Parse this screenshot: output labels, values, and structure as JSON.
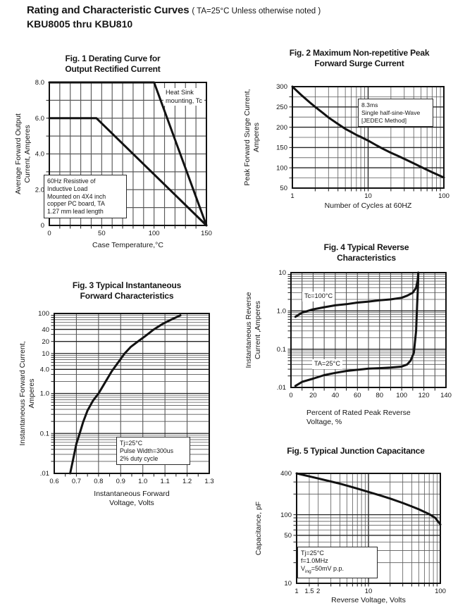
{
  "page": {
    "title": "Rating and Characteristic Curves",
    "title_note": "( TA=25°C Unless otherwise noted )",
    "subtitle": "KBU8005 thru KBU810"
  },
  "chart_data": [
    {
      "id": "fig1",
      "type": "line",
      "title_lines": [
        "Fig. 1 Derating Curve for",
        "Output Rectified Current"
      ],
      "ylabel_lines": [
        "Average Forward Output",
        "Current, Amperes"
      ],
      "xlabel_lines": [
        "Case Temperature,°C"
      ],
      "xaxis": {
        "scale": "linear",
        "min": 0,
        "max": 150,
        "gw": 1.15,
        "grid": [
          10,
          20,
          30,
          40,
          50,
          60,
          70,
          80,
          90,
          100,
          110,
          120,
          130,
          140
        ],
        "tick_labels": [
          {
            "v": 0,
            "t": "0"
          },
          {
            "v": 50,
            "t": "50"
          },
          {
            "v": 100,
            "t": "100"
          },
          {
            "v": 150,
            "t": "150"
          }
        ]
      },
      "yaxis": {
        "scale": "linear",
        "min": 0,
        "max": 8,
        "gw": 1.15,
        "grid": [
          1,
          2,
          3,
          4,
          5,
          6,
          7
        ],
        "tick_labels": [
          {
            "v": 0,
            "t": "0"
          },
          {
            "v": 2,
            "t": "2.0"
          },
          {
            "v": 4,
            "t": "4.0"
          },
          {
            "v": 6,
            "t": "6.0"
          },
          {
            "v": 8,
            "t": "8.0"
          }
        ]
      },
      "series": [
        {
          "name": "heat-sink-mounting",
          "points": [
            [
              0,
              8
            ],
            [
              100,
              8
            ],
            [
              150,
              0
            ]
          ]
        },
        {
          "name": "pc-board-mounting",
          "points": [
            [
              0,
              6
            ],
            [
              45,
              6
            ],
            [
              150,
              0
            ]
          ]
        }
      ],
      "annotations": {
        "heatsink_label": {
          "lines": [
            "Heat Sink",
            "mounting, Tc"
          ]
        },
        "load_note": {
          "lines": [
            "60Hz Resistive of",
            "Inductive Load",
            "Mounted on 4X4 inch",
            "copper PC board, TA",
            "1.27 mm lead length"
          ]
        }
      }
    },
    {
      "id": "fig2",
      "type": "line",
      "title_lines": [
        "Fig. 2 Maximum Non-repetitive Peak",
        "Forward Surge Current"
      ],
      "ylabel_lines": [
        "Peak Forward Surge Current,",
        "Amperes"
      ],
      "xlabel_lines": [
        "Number of Cycles at 60HZ"
      ],
      "xaxis": {
        "scale": "log",
        "min": 1,
        "max": 100,
        "bold": [
          10
        ],
        "grid": [
          2,
          3,
          4,
          5,
          6,
          7,
          8,
          9,
          10,
          20,
          30,
          40,
          50,
          60,
          70,
          80,
          90
        ],
        "tick_labels": [
          {
            "v": 1,
            "t": "1"
          },
          {
            "v": 10,
            "t": "10"
          },
          {
            "v": 100,
            "t": "100"
          }
        ]
      },
      "yaxis": {
        "scale": "linear",
        "min": 50,
        "max": 300,
        "bold": [
          100,
          150,
          200,
          250
        ],
        "grid": [
          75,
          100,
          125,
          150,
          175,
          200,
          225,
          250,
          275
        ],
        "tick_labels": [
          {
            "v": 50,
            "t": "50"
          },
          {
            "v": 100,
            "t": "100"
          },
          {
            "v": 150,
            "t": "150"
          },
          {
            "v": 200,
            "t": "200"
          },
          {
            "v": 250,
            "t": "250"
          },
          {
            "v": 300,
            "t": "300"
          }
        ]
      },
      "series": [
        {
          "name": "surge-current",
          "points": [
            [
              1,
              300
            ],
            [
              1.3,
              280
            ],
            [
              1.7,
              261
            ],
            [
              2,
              250
            ],
            [
              2.5,
              236
            ],
            [
              3,
              224
            ],
            [
              4,
              208
            ],
            [
              5,
              196
            ],
            [
              6,
              188
            ],
            [
              7,
              181
            ],
            [
              8,
              176
            ],
            [
              10,
              167
            ],
            [
              13,
              155
            ],
            [
              16,
              146
            ],
            [
              20,
              137
            ],
            [
              25,
              129
            ],
            [
              30,
              122
            ],
            [
              40,
              111
            ],
            [
              50,
              102
            ],
            [
              60,
              95
            ],
            [
              70,
              89
            ],
            [
              85,
              82
            ],
            [
              100,
              76
            ]
          ]
        }
      ],
      "annotations": {
        "method_note": {
          "lines": [
            "8.3ms",
            "Single half-sine-Wave",
            "[JEDEC Method]"
          ]
        }
      }
    },
    {
      "id": "fig3",
      "type": "line",
      "title_lines": [
        "Fig. 3 Typical Instantaneous",
        "Forward Characteristics"
      ],
      "ylabel_lines": [
        "Instantaneous Forward Current,",
        "Amperes"
      ],
      "xlabel_lines": [
        "Instantaneous Forward",
        "Voltage, Volts"
      ],
      "xaxis": {
        "scale": "linear",
        "min": 0.6,
        "max": 1.3,
        "gw": 1.1,
        "grid": [
          0.7,
          0.8,
          0.9,
          1.0,
          1.1,
          1.2
        ],
        "ticks": [
          0.65,
          0.7,
          0.75,
          0.8,
          0.85,
          0.9,
          0.95,
          1.0,
          1.05,
          1.1,
          1.15,
          1.2,
          1.25
        ],
        "tick_labels": [
          {
            "v": 0.6,
            "t": "0.6"
          },
          {
            "v": 0.7,
            "t": "0.7"
          },
          {
            "v": 0.8,
            "t": "0.8"
          },
          {
            "v": 0.9,
            "t": "0.9"
          },
          {
            "v": 1.0,
            "t": "1.0"
          },
          {
            "v": 1.1,
            "t": "1.1"
          },
          {
            "v": 1.2,
            "t": "1.2"
          },
          {
            "v": 1.3,
            "t": "1.3"
          }
        ]
      },
      "yaxis": {
        "scale": "log",
        "min": 0.01,
        "max": 100,
        "bold": [
          0.1,
          1,
          4,
          10,
          20,
          40
        ],
        "grid": [
          0.02,
          0.03,
          0.04,
          0.05,
          0.06,
          0.07,
          0.08,
          0.09,
          0.1,
          0.2,
          0.3,
          0.4,
          0.5,
          0.6,
          0.7,
          0.8,
          0.9,
          1,
          2,
          3,
          4,
          5,
          6,
          7,
          8,
          9,
          10,
          20,
          30,
          40,
          50,
          60,
          70,
          80,
          90
        ],
        "tick_labels": [
          {
            "v": 0.01,
            "t": ".01"
          },
          {
            "v": 0.1,
            "t": "0.1"
          },
          {
            "v": 1,
            "t": "1.0"
          },
          {
            "v": 4,
            "t": "4.0"
          },
          {
            "v": 10,
            "t": "10"
          },
          {
            "v": 20,
            "t": "20"
          },
          {
            "v": 40,
            "t": "40"
          },
          {
            "v": 100,
            "t": "100"
          }
        ]
      },
      "series": [
        {
          "name": "forward-characteristic",
          "points": [
            [
              0.672,
              0.01
            ],
            [
              0.685,
              0.022
            ],
            [
              0.7,
              0.055
            ],
            [
              0.715,
              0.1
            ],
            [
              0.73,
              0.19
            ],
            [
              0.75,
              0.37
            ],
            [
              0.775,
              0.66
            ],
            [
              0.8,
              1.0
            ],
            [
              0.83,
              1.9
            ],
            [
              0.86,
              3.6
            ],
            [
              0.885,
              5.6
            ],
            [
              0.918,
              10
            ],
            [
              0.945,
              14.5
            ],
            [
              0.978,
              20
            ],
            [
              1.01,
              27
            ],
            [
              1.05,
              40
            ],
            [
              1.09,
              55
            ],
            [
              1.13,
              71
            ],
            [
              1.17,
              90
            ]
          ]
        }
      ],
      "annotations": {
        "condition_note": {
          "lines": [
            "Tj=25°C",
            "Pulse Width=300us",
            "2% duty cycle"
          ]
        }
      }
    },
    {
      "id": "fig4",
      "type": "line",
      "title_lines": [
        "Fig. 4 Typical Reverse",
        "Characteristics"
      ],
      "ylabel_lines": [
        "Instantaneous Reverse",
        "Current ,Amperes"
      ],
      "xlabel_lines": [
        "Percent of Rated Peak Reverse",
        "Voltage, %"
      ],
      "xaxis": {
        "scale": "linear",
        "min": 0,
        "max": 140,
        "gw": 1.1,
        "grid": [
          10,
          20,
          30,
          40,
          50,
          60,
          70,
          80,
          90,
          100,
          110,
          120,
          130
        ],
        "tick_labels": [
          {
            "v": 0,
            "t": "0"
          },
          {
            "v": 20,
            "t": "20"
          },
          {
            "v": 40,
            "t": "40"
          },
          {
            "v": 60,
            "t": "60"
          },
          {
            "v": 80,
            "t": "80"
          },
          {
            "v": 100,
            "t": "100"
          },
          {
            "v": 120,
            "t": "120"
          },
          {
            "v": 140,
            "t": "140"
          }
        ]
      },
      "yaxis": {
        "scale": "log",
        "min": 0.01,
        "max": 10,
        "bold": [
          0.1,
          1
        ],
        "grid": [
          0.02,
          0.03,
          0.04,
          0.05,
          0.06,
          0.07,
          0.08,
          0.09,
          0.1,
          0.2,
          0.3,
          0.4,
          0.5,
          0.6,
          0.7,
          0.8,
          0.9,
          1,
          2,
          3,
          4,
          5,
          6,
          7,
          8,
          9
        ],
        "tick_labels": [
          {
            "v": 0.01,
            "t": ".01"
          },
          {
            "v": 0.1,
            "t": "0.1"
          },
          {
            "v": 1,
            "t": "1.0"
          },
          {
            "v": 10,
            "t": "10"
          }
        ]
      },
      "series": [
        {
          "name": "tc-100c",
          "points": [
            [
              4,
              0.7
            ],
            [
              10,
              0.9
            ],
            [
              20,
              1.1
            ],
            [
              30,
              1.25
            ],
            [
              40,
              1.4
            ],
            [
              50,
              1.5
            ],
            [
              60,
              1.65
            ],
            [
              70,
              1.75
            ],
            [
              80,
              1.9
            ],
            [
              90,
              2.0
            ],
            [
              100,
              2.2
            ],
            [
              105,
              2.5
            ],
            [
              110,
              3.0
            ],
            [
              113,
              4.0
            ],
            [
              114.5,
              6.5
            ],
            [
              115,
              10
            ]
          ]
        },
        {
          "name": "ta-25c",
          "points": [
            [
              4,
              0.011
            ],
            [
              10,
              0.014
            ],
            [
              20,
              0.017
            ],
            [
              30,
              0.021
            ],
            [
              40,
              0.024
            ],
            [
              50,
              0.027
            ],
            [
              60,
              0.029
            ],
            [
              70,
              0.031
            ],
            [
              80,
              0.032
            ],
            [
              90,
              0.033
            ],
            [
              100,
              0.035
            ],
            [
              105,
              0.04
            ],
            [
              108,
              0.05
            ],
            [
              111,
              0.08
            ],
            [
              113,
              0.3
            ],
            [
              114,
              1.5
            ],
            [
              114.8,
              5
            ],
            [
              115,
              10
            ]
          ]
        }
      ],
      "annotations": {
        "tc_label": {
          "lines": [
            "Tc=100°C"
          ]
        },
        "ta_label": {
          "lines": [
            "TA=25°C"
          ]
        }
      }
    },
    {
      "id": "fig5",
      "type": "line",
      "title_lines": [
        "Fig. 5 Typical Junction Capacitance"
      ],
      "ylabel_lines": [
        "Capacitance, pF"
      ],
      "xlabel_lines": [
        "Reverse Voltage, Volts"
      ],
      "xaxis": {
        "scale": "log",
        "min": 1,
        "max": 100,
        "bold": [
          10
        ],
        "grid": [
          1.5,
          2,
          3,
          4,
          5,
          6,
          7,
          8,
          9,
          10,
          20,
          30,
          40,
          50,
          60,
          70,
          80,
          90
        ],
        "tick_labels": [
          {
            "v": 1,
            "t": "1"
          },
          {
            "v": 1.5,
            "t": "1.5"
          },
          {
            "v": 2,
            "t": "2"
          },
          {
            "v": 10,
            "t": "10"
          },
          {
            "v": 100,
            "t": "100"
          }
        ]
      },
      "yaxis": {
        "scale": "log",
        "min": 10,
        "max": 400,
        "bold": [
          50,
          100
        ],
        "grid": [
          20,
          30,
          40,
          50,
          60,
          70,
          80,
          90,
          100,
          200,
          300
        ],
        "tick_labels": [
          {
            "v": 10,
            "t": "10"
          },
          {
            "v": 50,
            "t": "50"
          },
          {
            "v": 100,
            "t": "100"
          },
          {
            "v": 400,
            "t": "400"
          }
        ]
      },
      "series": [
        {
          "name": "junction-capacitance",
          "points": [
            [
              1,
              400
            ],
            [
              1.5,
              362
            ],
            [
              2,
              337
            ],
            [
              3,
              305
            ],
            [
              4,
              283
            ],
            [
              5,
              266
            ],
            [
              7,
              240
            ],
            [
              10,
              215
            ],
            [
              15,
              189
            ],
            [
              20,
              172
            ],
            [
              30,
              148
            ],
            [
              40,
              132
            ],
            [
              50,
              120
            ],
            [
              70,
              102
            ],
            [
              85,
              90
            ],
            [
              100,
              72
            ]
          ]
        }
      ],
      "annotations": {
        "condition_note": {
          "lines": [
            "Tj=25°C",
            "f=1.0MHz"
          ],
          "vline": {
            "v": "V",
            "sub": "ing",
            "rest": "=50mV p.p."
          }
        }
      }
    }
  ]
}
